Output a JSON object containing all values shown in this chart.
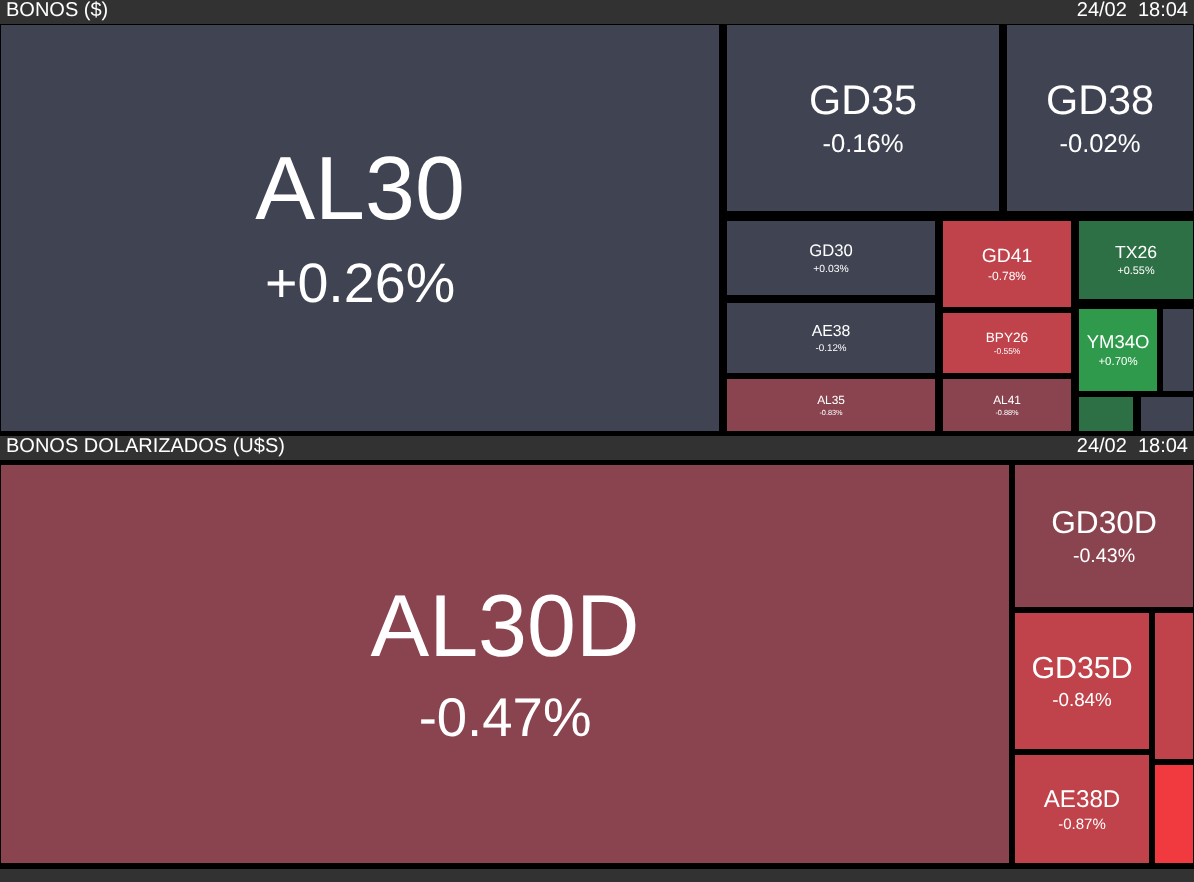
{
  "chart_data": [
    {
      "type": "other",
      "title": "BONOS ($)",
      "annotations": [
        "24/02  18:04"
      ],
      "categories": [
        "AL30",
        "GD35",
        "GD38",
        "GD30",
        "AE38",
        "AL35",
        "GD41",
        "BPY26",
        "AL41",
        "TX26",
        "YM34O",
        null,
        null,
        null
      ],
      "values": [
        0.26,
        -0.16,
        -0.02,
        0.03,
        -0.12,
        -0.83,
        -0.78,
        -0.55,
        -0.88,
        0.55,
        0.7,
        null,
        null,
        null
      ],
      "value_labels": [
        "+0.26%",
        "-0.16%",
        "-0.02%",
        "+0.03%",
        "-0.12%",
        "-0.83%",
        "-0.78%",
        "-0.55%",
        "-0.88%",
        "+0.55%",
        "+0.70%",
        null,
        null,
        null
      ],
      "colors": [
        "#404452",
        "#404452",
        "#404452",
        "#404452",
        "#404452",
        "#8a4450",
        "#c0424a",
        "#c0424a",
        "#8a4450",
        "#2e7045",
        "#2f9a4b",
        "#404452",
        "#2e7045",
        "#404452"
      ]
    },
    {
      "type": "other",
      "title": "BONOS DOLARIZADOS (U$S)",
      "annotations": [
        "24/02  18:04"
      ],
      "categories": [
        "AL30D",
        "GD30D",
        "GD35D",
        "AE38D",
        null,
        null
      ],
      "values": [
        -0.47,
        -0.43,
        -0.84,
        -0.87,
        null,
        null
      ],
      "value_labels": [
        "-0.47%",
        "-0.43%",
        "-0.84%",
        "-0.87%",
        null,
        null
      ],
      "colors": [
        "#8a4450",
        "#8a4450",
        "#c0424a",
        "#c0424a",
        "#c0424a",
        "#f03a40"
      ]
    }
  ]
}
